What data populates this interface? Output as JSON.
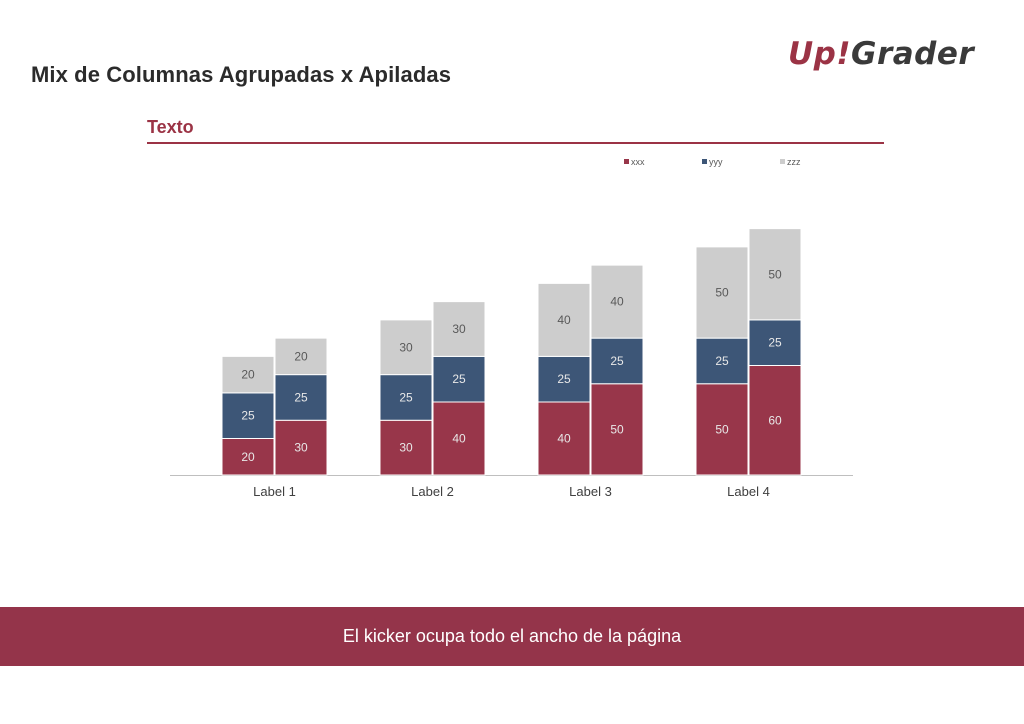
{
  "page": {
    "title": "Mix de Columnas Agrupadas x Apiladas",
    "section_title": "Texto",
    "kicker": "El kicker ocupa todo el ancho de la página"
  },
  "logo": {
    "part1": "Up",
    "part2": "!",
    "part3": "Grader"
  },
  "colors": {
    "accent": "#9b3345",
    "footer": "#94344a",
    "xxx": "#98364a",
    "yyy": "#3d5677",
    "zzz": "#cdcdcd"
  },
  "chart_data": {
    "type": "bar",
    "stacked": true,
    "grouped": true,
    "categories": [
      "Label 1",
      "Label 2",
      "Label 3",
      "Label 4"
    ],
    "bars_per_category": 2,
    "series": [
      {
        "name": "xxx",
        "values": [
          [
            20,
            30
          ],
          [
            30,
            40
          ],
          [
            40,
            50
          ],
          [
            50,
            60
          ]
        ]
      },
      {
        "name": "yyy",
        "values": [
          [
            25,
            25
          ],
          [
            25,
            25
          ],
          [
            25,
            25
          ],
          [
            25,
            25
          ]
        ]
      },
      {
        "name": "zzz",
        "values": [
          [
            20,
            20
          ],
          [
            30,
            30
          ],
          [
            40,
            40
          ],
          [
            50,
            50
          ]
        ]
      }
    ],
    "title": "",
    "xlabel": "",
    "ylabel": "",
    "ylim": [
      0,
      135
    ],
    "grid": false,
    "legend": "top-right"
  }
}
